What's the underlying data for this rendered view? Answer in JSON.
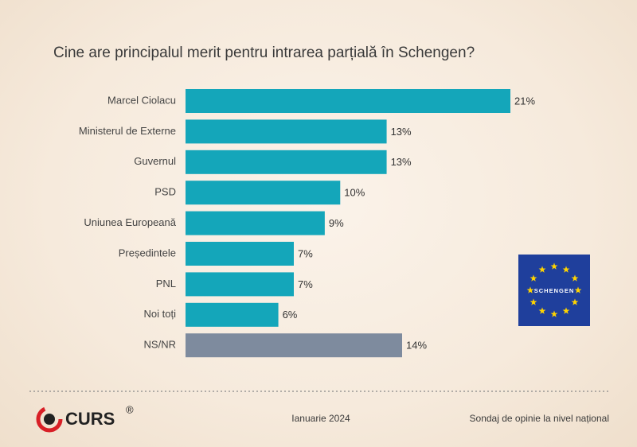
{
  "chart_data": {
    "type": "barh",
    "title": "Cine are principalul merit pentru intrarea parțială în Schengen?",
    "categories": [
      "Marcel Ciolacu",
      "Ministerul de Externe",
      "Guvernul",
      "PSD",
      "Uniunea Europeană",
      "Președintele",
      "PNL",
      "Noi toți",
      "NS/NR"
    ],
    "values": [
      21,
      13,
      13,
      10,
      9,
      7,
      7,
      6,
      14
    ],
    "value_labels": [
      "21%",
      "13%",
      "13%",
      "10%",
      "9%",
      "7%",
      "7%",
      "6%",
      "14%"
    ],
    "colors": [
      "#14a6ba",
      "#14a6ba",
      "#14a6ba",
      "#14a6ba",
      "#14a6ba",
      "#14a6ba",
      "#14a6ba",
      "#14a6ba",
      "#7e8b9e"
    ]
  },
  "badge": "SCHENGEN",
  "footer": {
    "logo": "CURS",
    "registered": "®",
    "date": "Ianuarie 2024",
    "note": "Sondaj de opinie la nivel național"
  }
}
